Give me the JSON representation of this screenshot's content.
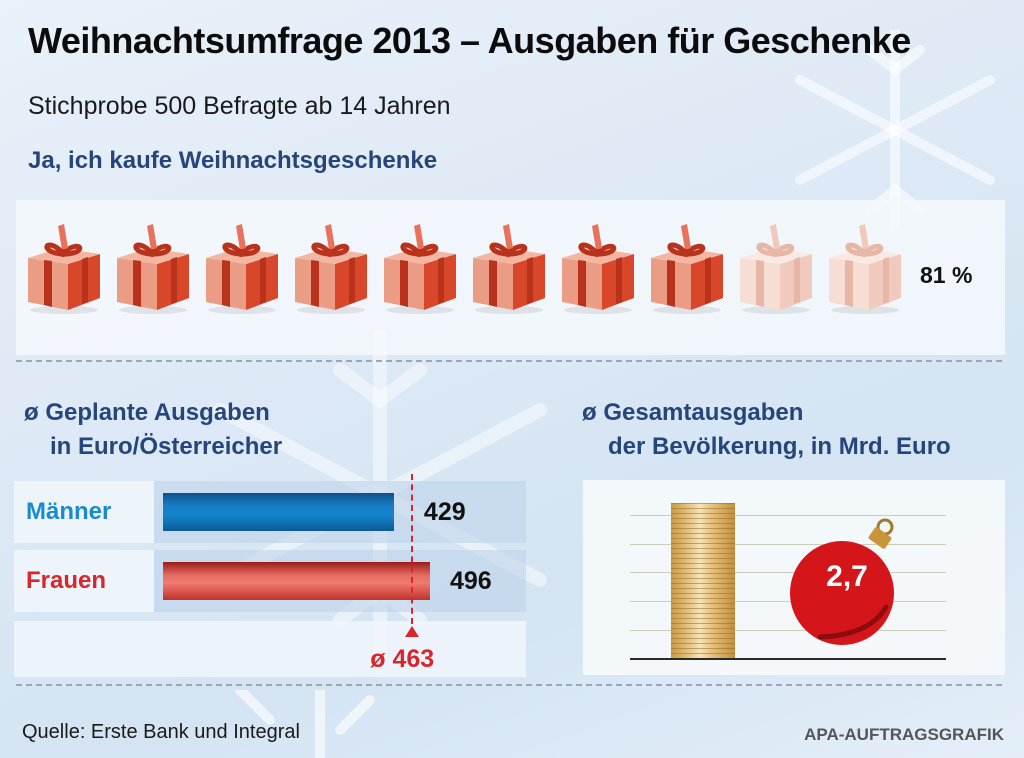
{
  "title": "Weihnachtsumfrage 2013 – Ausgaben für Geschenke",
  "subtitle": "Stichprobe 500 Befragte ab 14 Jahren",
  "footer": {
    "source": "Quelle: Erste Bank und Integral",
    "credit": "APA-AUFTRAGSGRAFIK"
  },
  "colors": {
    "navy": "#26457a",
    "blue_bar": "#1482c9",
    "red_bar": "#e56c62",
    "accent_red": "#d8262c",
    "gift_filled": "#e0512f",
    "gift_empty": "#f3cfc2"
  },
  "chart_data": [
    {
      "type": "pictogram",
      "title": "Ja, ich kaufe Weihnachtsgeschenke",
      "value_label": "81 %",
      "value": 81,
      "unit": "%",
      "icon": "gift-icon",
      "icons_total": 10,
      "icons_filled": 8
    },
    {
      "type": "bar",
      "orientation": "horizontal",
      "title_symbol": "ø",
      "title_line1": "Geplante Ausgaben",
      "title_line2": "in Euro/Österreicher",
      "categories": [
        "Männer",
        "Frauen"
      ],
      "values": [
        429,
        496
      ],
      "value_labels": [
        "429",
        "496"
      ],
      "average": 463,
      "average_label": "ø 463",
      "xlim": [
        0,
        560
      ]
    },
    {
      "type": "single-value",
      "title_symbol": "ø",
      "title_line1": "Gesamtausgaben",
      "title_line2": "der Bevölkerung, in Mrd. Euro",
      "value": 2.7,
      "value_label": "2,7",
      "gridlines": 5
    }
  ]
}
